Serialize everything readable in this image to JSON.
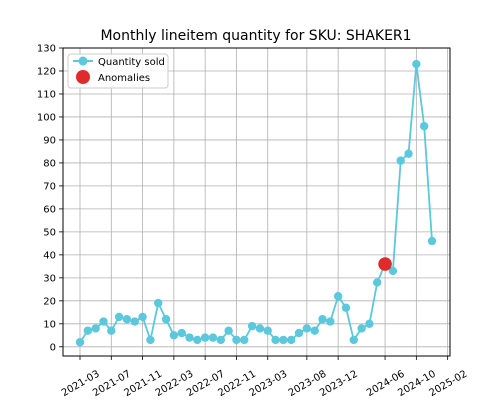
{
  "chart_data": {
    "type": "line",
    "title": "Monthly lineitem quantity for SKU: SHAKER1",
    "xlabel": "",
    "ylabel": "",
    "ylim": [
      -4,
      130
    ],
    "yticks": [
      0,
      10,
      20,
      30,
      40,
      50,
      60,
      70,
      80,
      90,
      100,
      110,
      120,
      130
    ],
    "xticks": [
      "2021-03",
      "2021-07",
      "2021-11",
      "2022-03",
      "2022-07",
      "2022-11",
      "2023-03",
      "2023-08",
      "2023-12",
      "2024-06",
      "2024-10",
      "2025-02"
    ],
    "grid": true,
    "legend_position": "top-left",
    "series": [
      {
        "name": "Quantity sold",
        "color": "#5bc8dc",
        "values": [
          2,
          7,
          8,
          11,
          7,
          13,
          12,
          11,
          13,
          3,
          19,
          12,
          5,
          6,
          4,
          3,
          4,
          4,
          3,
          7,
          3,
          3,
          9,
          8,
          7,
          3,
          3,
          3,
          6,
          8,
          7,
          12,
          11,
          22,
          17,
          3,
          8,
          10,
          28,
          36,
          33,
          81,
          84,
          123,
          96,
          46
        ]
      },
      {
        "name": "Anomalies",
        "color": "#e02b2b",
        "points": [
          {
            "index": 39,
            "value": 36
          }
        ]
      }
    ]
  }
}
